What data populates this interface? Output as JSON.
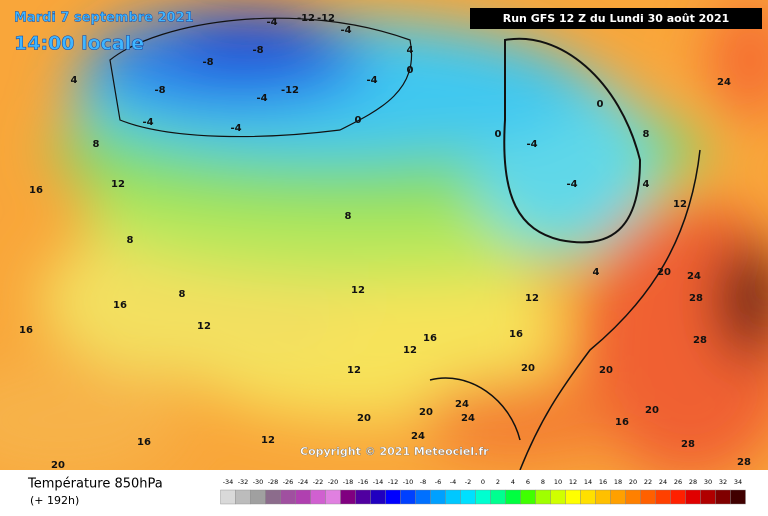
{
  "header": {
    "date": "Mardi 7 septembre 2021",
    "time": "14:00 locale",
    "run": "Run GFS 12 Z du Lundi 30 août 2021"
  },
  "copyright": "Copyright © 2021 Meteociel.fr",
  "legend": {
    "title": "Température 850hPa",
    "lead": "(+ 192h)",
    "ticks": [
      -34,
      -32,
      -30,
      -28,
      -26,
      -24,
      -22,
      -20,
      -18,
      -16,
      -14,
      -12,
      -10,
      -8,
      -6,
      -4,
      -2,
      0,
      2,
      4,
      6,
      8,
      10,
      12,
      14,
      16,
      18,
      20,
      22,
      24,
      26,
      28,
      30,
      32,
      34
    ],
    "colors": [
      "#d9d9d9",
      "#bcbcbc",
      "#a0a0a0",
      "#8c6c8c",
      "#a050a0",
      "#b040b0",
      "#d060d0",
      "#e080e0",
      "#800080",
      "#5000a0",
      "#2000c0",
      "#0000ff",
      "#0040ff",
      "#0070ff",
      "#00a0ff",
      "#00c8ff",
      "#00e0ff",
      "#00ffd0",
      "#00ff90",
      "#00ff40",
      "#40ff00",
      "#a0ff00",
      "#d0ff00",
      "#ffff00",
      "#ffe000",
      "#ffc000",
      "#ffa000",
      "#ff8000",
      "#ff6000",
      "#ff4000",
      "#ff2000",
      "#e00000",
      "#b00000",
      "#800000",
      "#400000"
    ]
  },
  "map": {
    "labels": [
      -8,
      -4,
      -12,
      -12,
      -4,
      -8,
      -8,
      -4,
      -12,
      -4,
      -4,
      -4,
      0,
      0,
      0,
      -4,
      -4,
      0,
      4,
      4,
      8,
      12,
      16,
      8,
      16,
      16,
      12,
      8,
      12,
      8,
      12,
      16,
      20,
      20,
      28,
      28,
      24,
      20,
      24,
      12,
      8,
      4,
      16,
      12,
      12,
      20,
      20,
      24,
      24,
      24,
      16,
      20,
      28,
      28,
      16,
      20,
      12,
      4
    ]
  }
}
